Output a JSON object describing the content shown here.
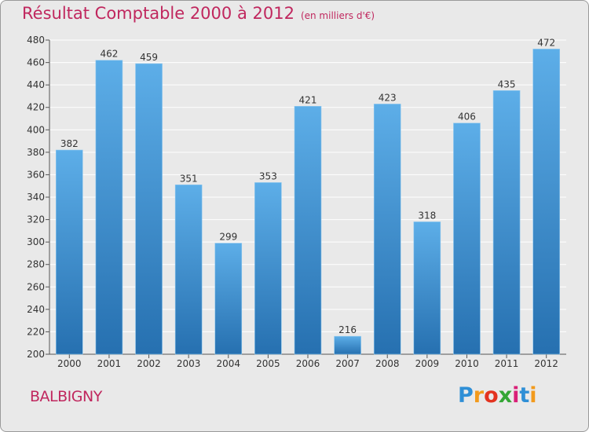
{
  "title": "Résultat Comptable 2000 à 2012",
  "subtitle": "(en milliers d'€)",
  "commune": "BALBIGNY",
  "brand": {
    "letters": [
      "P",
      "r",
      "o",
      "x",
      "i",
      "t",
      "i"
    ],
    "colors": [
      "#2f8fd6",
      "#f29a1c",
      "#e3331f",
      "#33a634",
      "#d92078",
      "#2f8fd6",
      "#f29a1c"
    ]
  },
  "colors": {
    "title": "#c0275e",
    "bar_top": "#5daee8",
    "bar_bottom": "#2670b0",
    "grid": "#ffffff",
    "background": "#e9e9e9"
  },
  "chart_data": {
    "type": "bar",
    "categories": [
      "2000",
      "2001",
      "2002",
      "2003",
      "2004",
      "2005",
      "2006",
      "2007",
      "2008",
      "2009",
      "2010",
      "2011",
      "2012"
    ],
    "values": [
      382,
      462,
      459,
      351,
      299,
      353,
      421,
      216,
      423,
      318,
      406,
      435,
      472
    ],
    "ylim": [
      200,
      480
    ],
    "yticks": [
      200,
      220,
      240,
      260,
      280,
      300,
      320,
      340,
      360,
      380,
      400,
      420,
      440,
      460,
      480
    ],
    "grid": true,
    "data_labels": true
  }
}
